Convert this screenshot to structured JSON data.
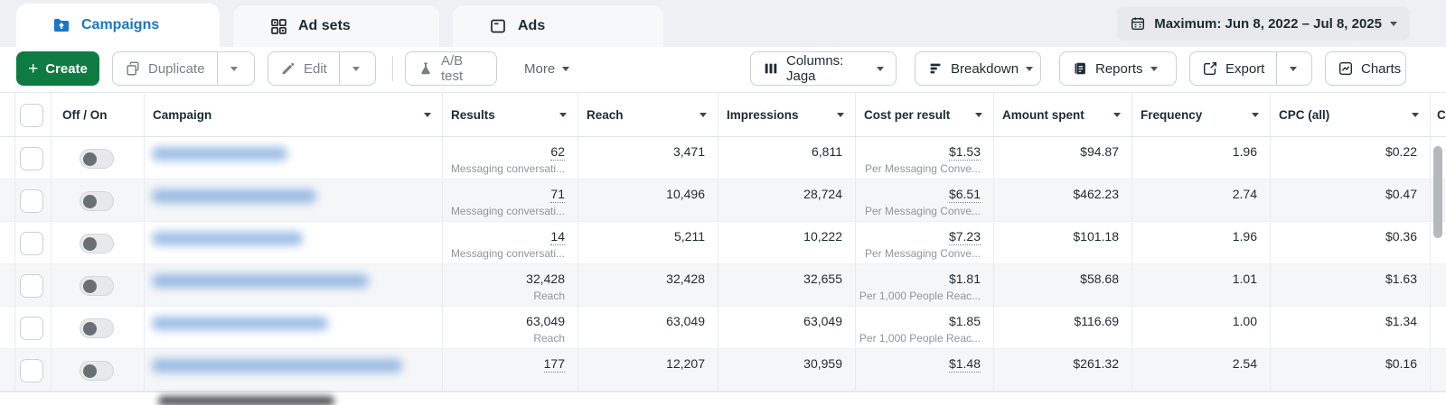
{
  "tabs": {
    "campaigns": "Campaigns",
    "ad_sets": "Ad sets",
    "ads": "Ads"
  },
  "date_range": {
    "label": "Maximum: Jun 8, 2022 – Jul 8, 2025"
  },
  "toolbar": {
    "create": "Create",
    "duplicate": "Duplicate",
    "edit": "Edit",
    "ab_test": "A/B test",
    "more": "More",
    "columns": "Columns: Jaga",
    "breakdown": "Breakdown",
    "reports": "Reports",
    "export": "Export",
    "charts": "Charts"
  },
  "table": {
    "headers": {
      "off_on": "Off / On",
      "campaign": "Campaign",
      "results": "Results",
      "reach": "Reach",
      "impressions": "Impressions",
      "cost_per_result": "Cost per result",
      "amount_spent": "Amount spent",
      "frequency": "Frequency",
      "cpc": "CPC (all)",
      "partial": "C"
    },
    "rows": [
      {
        "results": "62",
        "results_sub": "Messaging conversati...",
        "results_dotted": true,
        "reach": "3,471",
        "impressions": "6,811",
        "cpr": "$1.53",
        "cpr_sub": "Per Messaging Conve...",
        "cpr_dotted": true,
        "spent": "$94.87",
        "freq": "1.96",
        "cpc": "$0.22",
        "name_width": 150
      },
      {
        "results": "71",
        "results_sub": "Messaging conversati...",
        "results_dotted": true,
        "reach": "10,496",
        "impressions": "28,724",
        "cpr": "$6.51",
        "cpr_sub": "Per Messaging Conve...",
        "cpr_dotted": true,
        "spent": "$462.23",
        "freq": "2.74",
        "cpc": "$0.47",
        "name_width": 182
      },
      {
        "results": "14",
        "results_sub": "Messaging conversati...",
        "results_dotted": true,
        "reach": "5,211",
        "impressions": "10,222",
        "cpr": "$7.23",
        "cpr_sub": "Per Messaging Conve...",
        "cpr_dotted": true,
        "spent": "$101.18",
        "freq": "1.96",
        "cpc": "$0.36",
        "name_width": 167
      },
      {
        "results": "32,428",
        "results_sub": "Reach",
        "results_dotted": false,
        "reach": "32,428",
        "impressions": "32,655",
        "cpr": "$1.81",
        "cpr_sub": "Per 1,000 People Reac...",
        "cpr_dotted": false,
        "spent": "$58.68",
        "freq": "1.01",
        "cpc": "$1.63",
        "name_width": 240
      },
      {
        "results": "63,049",
        "results_sub": "Reach",
        "results_dotted": false,
        "reach": "63,049",
        "impressions": "63,049",
        "cpr": "$1.85",
        "cpr_sub": "Per 1,000 People Reac...",
        "cpr_dotted": false,
        "spent": "$116.69",
        "freq": "1.00",
        "cpc": "$1.34",
        "name_width": 195
      },
      {
        "results": "177",
        "results_sub": "",
        "results_dotted": true,
        "reach": "12,207",
        "impressions": "30,959",
        "cpr": "$1.48",
        "cpr_sub": "",
        "cpr_dotted": true,
        "spent": "$261.32",
        "freq": "2.54",
        "cpc": "$0.16",
        "name_width": 277
      }
    ]
  },
  "colors": {
    "accent_blue": "#1877c9",
    "create_green": "#0e7b43",
    "strip_bg": "#eef0f3",
    "stripe_row": "#f5f6f8",
    "muted_text": "#90959b",
    "dark_text": "#1c2b33"
  }
}
